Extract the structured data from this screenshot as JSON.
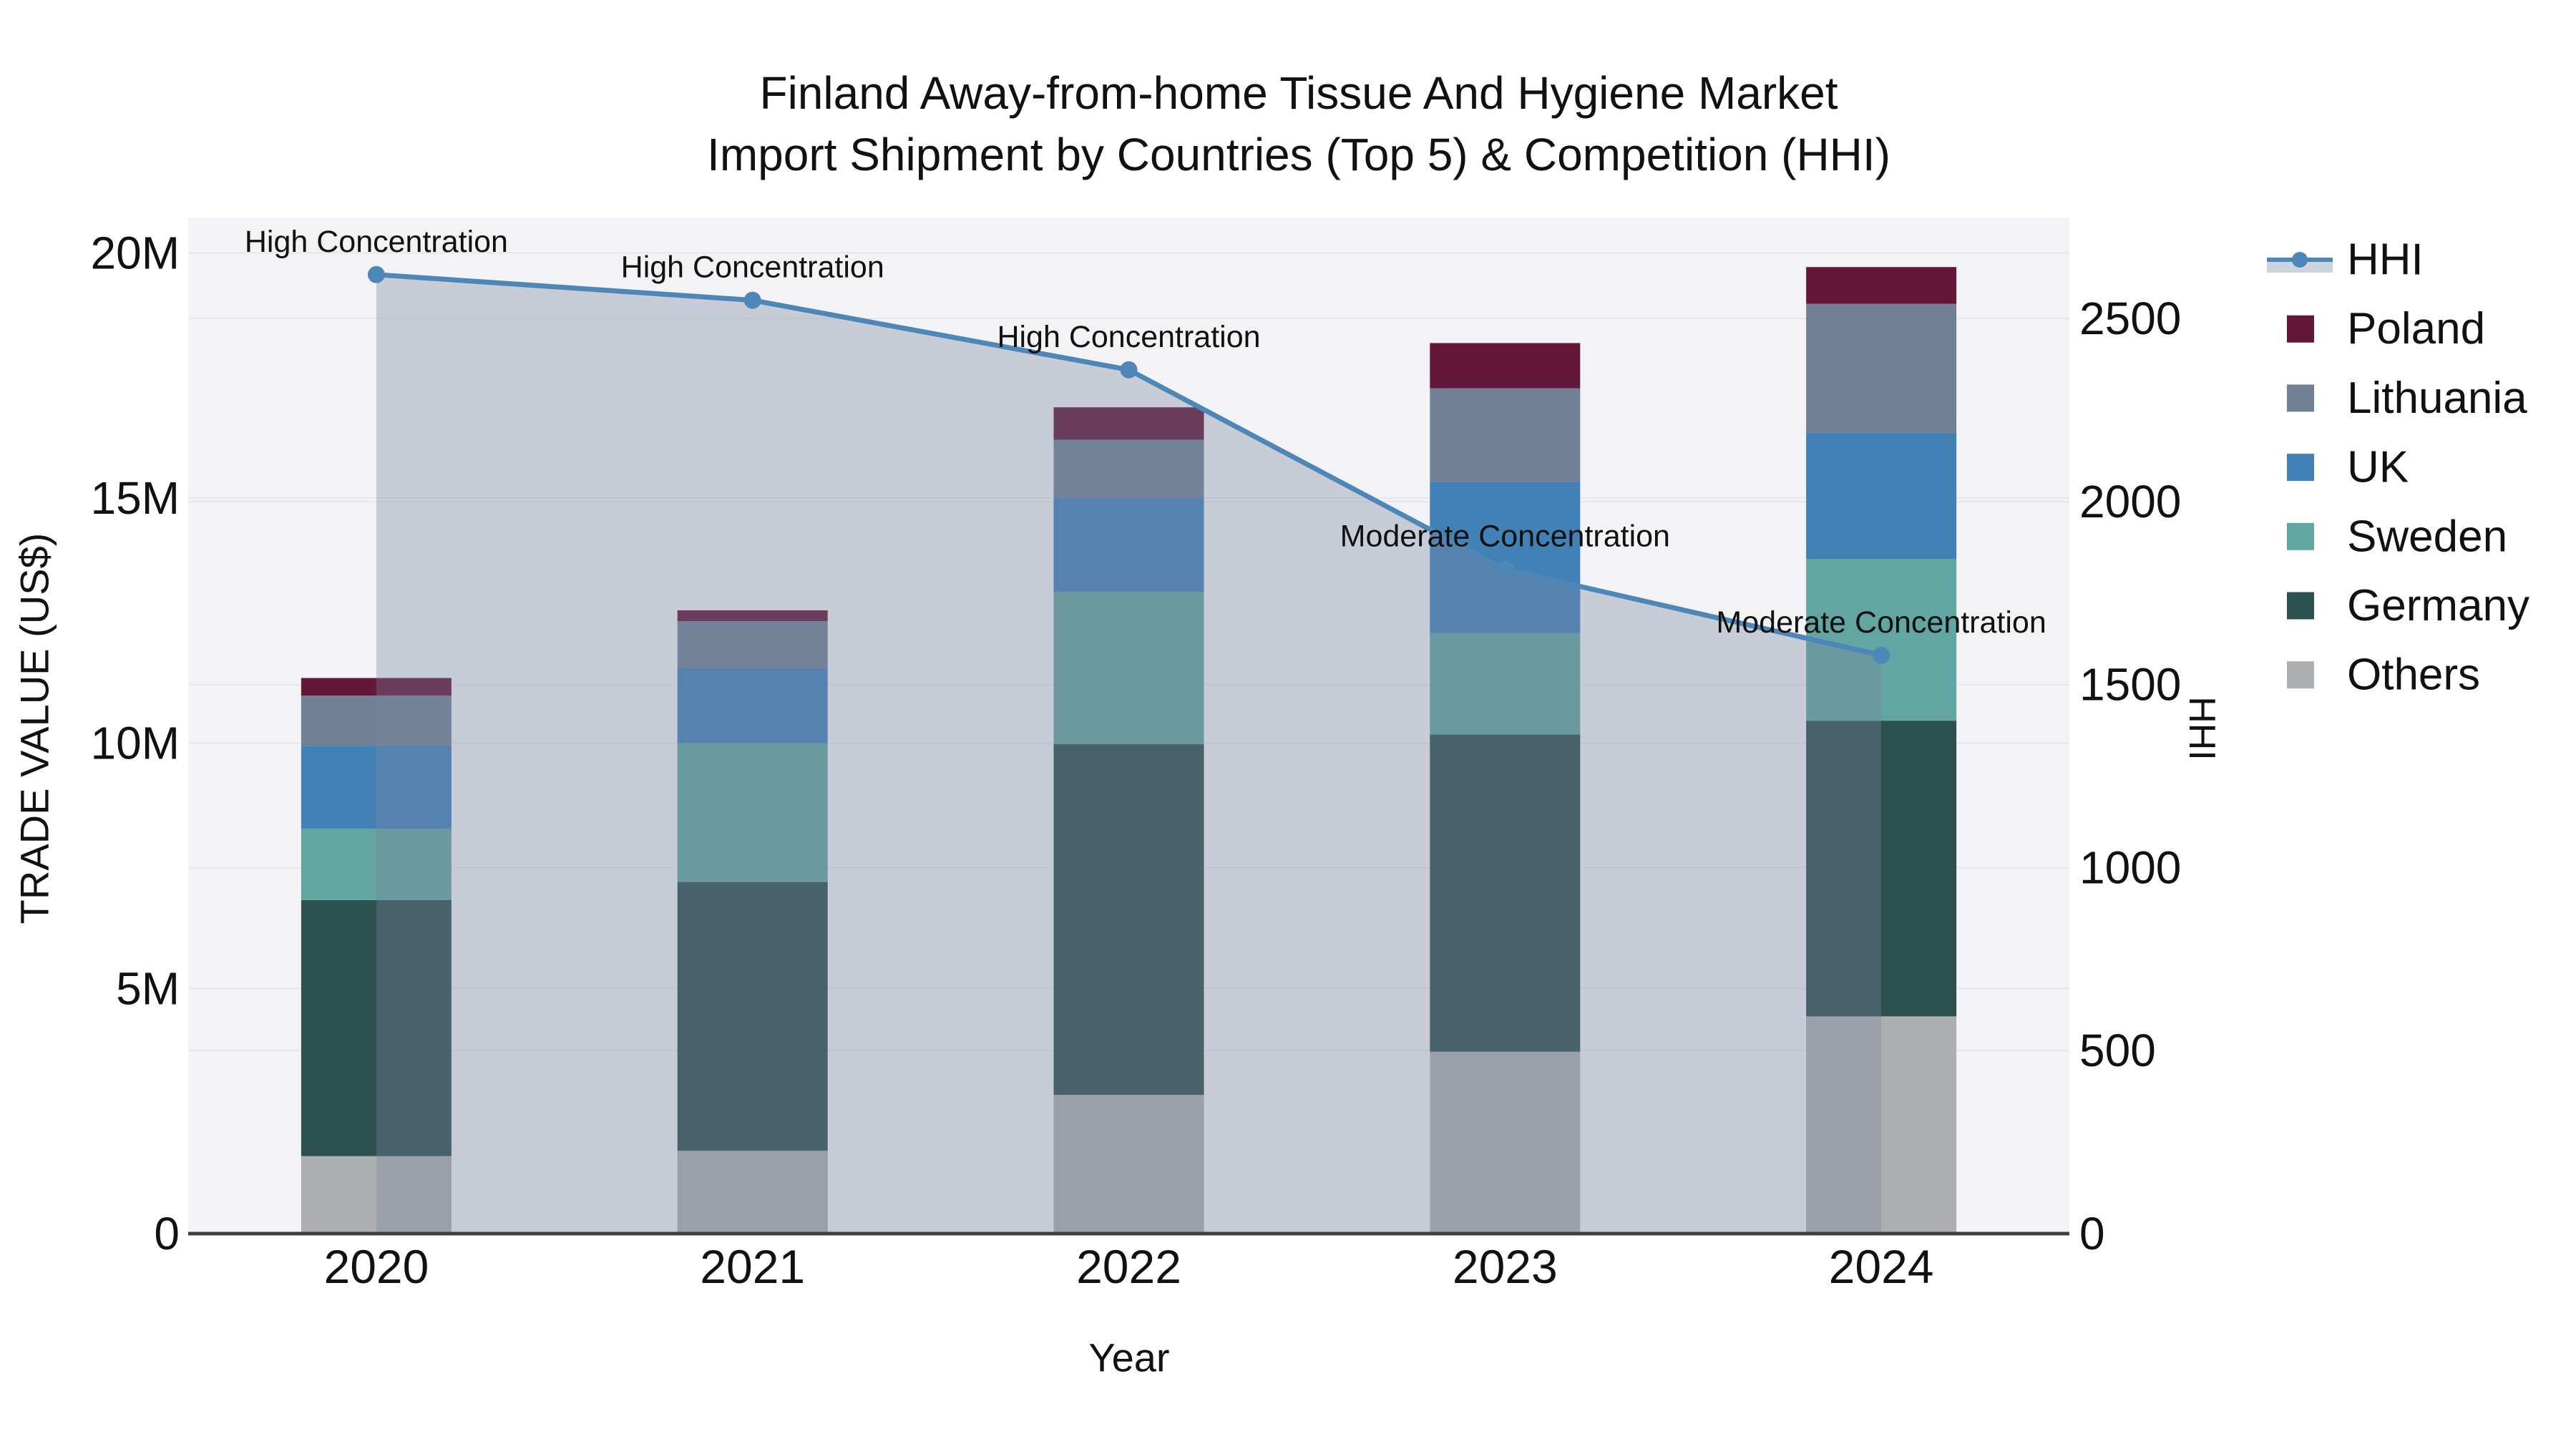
{
  "title": {
    "line1": "Finland Away-from-home Tissue And Hygiene Market",
    "line2": "Import Shipment by Countries (Top 5) & Competition (HHI)"
  },
  "axes": {
    "x": {
      "title": "Year",
      "tick_labels": [
        "2020",
        "2021",
        "2022",
        "2023",
        "2024"
      ]
    },
    "y_left": {
      "title": "TRADE VALUE (US$)",
      "tick_labels": [
        "0",
        "5M",
        "10M",
        "15M",
        "20M"
      ],
      "tick_values": [
        0,
        5,
        10,
        15,
        20
      ],
      "range": [
        0,
        20.72
      ]
    },
    "y_right": {
      "title": "HHI",
      "tick_labels": [
        "0",
        "500",
        "1000",
        "1500",
        "2000",
        "2500"
      ],
      "tick_values": [
        0,
        500,
        1000,
        1500,
        2000,
        2500
      ],
      "range": [
        0,
        2776
      ]
    }
  },
  "theme": {
    "plot_bg": "#f3f3f5",
    "grid": "#e7e7ea",
    "axis_line": "#3f3f3f",
    "text": "#111111",
    "area_fill": "rgba(120,132,160,0.35)",
    "legend_band": "#ccd3dc",
    "hhi_color": "#4d87b7"
  },
  "legend": {
    "items": [
      {
        "label": "HHI",
        "type": "line",
        "color": "#4d87b7"
      },
      {
        "label": "Poland",
        "type": "square",
        "color": "#641839"
      },
      {
        "label": "Lithuania",
        "type": "square",
        "color": "#708095"
      },
      {
        "label": "UK",
        "type": "square",
        "color": "#4281b5"
      },
      {
        "label": "Sweden",
        "type": "square",
        "color": "#63a5a3"
      },
      {
        "label": "Germany",
        "type": "square",
        "color": "#2d514f"
      },
      {
        "label": "Others",
        "type": "square",
        "color": "#adaeb0"
      }
    ]
  },
  "chart_data": {
    "type": "bar",
    "stacked": true,
    "unit": "millions of US$",
    "title": "Finland Away-from-home Tissue And Hygiene Market Import Shipment by Countries (Top 5) & Competition (HHI)",
    "xlabel": "Year",
    "ylabel_left": "TRADE VALUE (US$)",
    "ylabel_right": "HHI",
    "ylim_left": [
      0,
      20.72
    ],
    "ylim_right": [
      0,
      2776
    ],
    "grid": true,
    "legend_position": "right",
    "categories": [
      "2020",
      "2021",
      "2022",
      "2023",
      "2024"
    ],
    "series": [
      {
        "name": "Others",
        "color": "#adaeb0",
        "values": [
          1.58,
          1.69,
          2.83,
          3.71,
          4.43
        ]
      },
      {
        "name": "Germany",
        "color": "#2d514f",
        "values": [
          5.22,
          5.48,
          7.15,
          6.47,
          6.03
        ]
      },
      {
        "name": "Sweden",
        "color": "#63a5a3",
        "values": [
          1.46,
          2.83,
          3.11,
          2.07,
          3.3
        ]
      },
      {
        "name": "UK",
        "color": "#4281b5",
        "values": [
          1.69,
          1.52,
          1.91,
          3.08,
          2.56
        ]
      },
      {
        "name": "Lithuania",
        "color": "#708095",
        "values": [
          1.02,
          0.97,
          1.19,
          1.91,
          2.64
        ]
      },
      {
        "name": "Poland",
        "color": "#641839",
        "values": [
          0.36,
          0.22,
          0.66,
          0.92,
          0.75
        ]
      }
    ],
    "bar_totals": [
      11.33,
      12.71,
      16.85,
      18.16,
      19.71
    ],
    "line_series": {
      "name": "HHI",
      "axis": "right",
      "color": "#4d87b7",
      "area_fill": true,
      "values": [
        2620,
        2550,
        2360,
        1815,
        1580
      ]
    },
    "annotations": [
      {
        "category": "2020",
        "text": "High Concentration"
      },
      {
        "category": "2021",
        "text": "High Concentration"
      },
      {
        "category": "2022",
        "text": "High Concentration"
      },
      {
        "category": "2023",
        "text": "Moderate Concentration"
      },
      {
        "category": "2024",
        "text": "Moderate Concentration"
      }
    ]
  }
}
